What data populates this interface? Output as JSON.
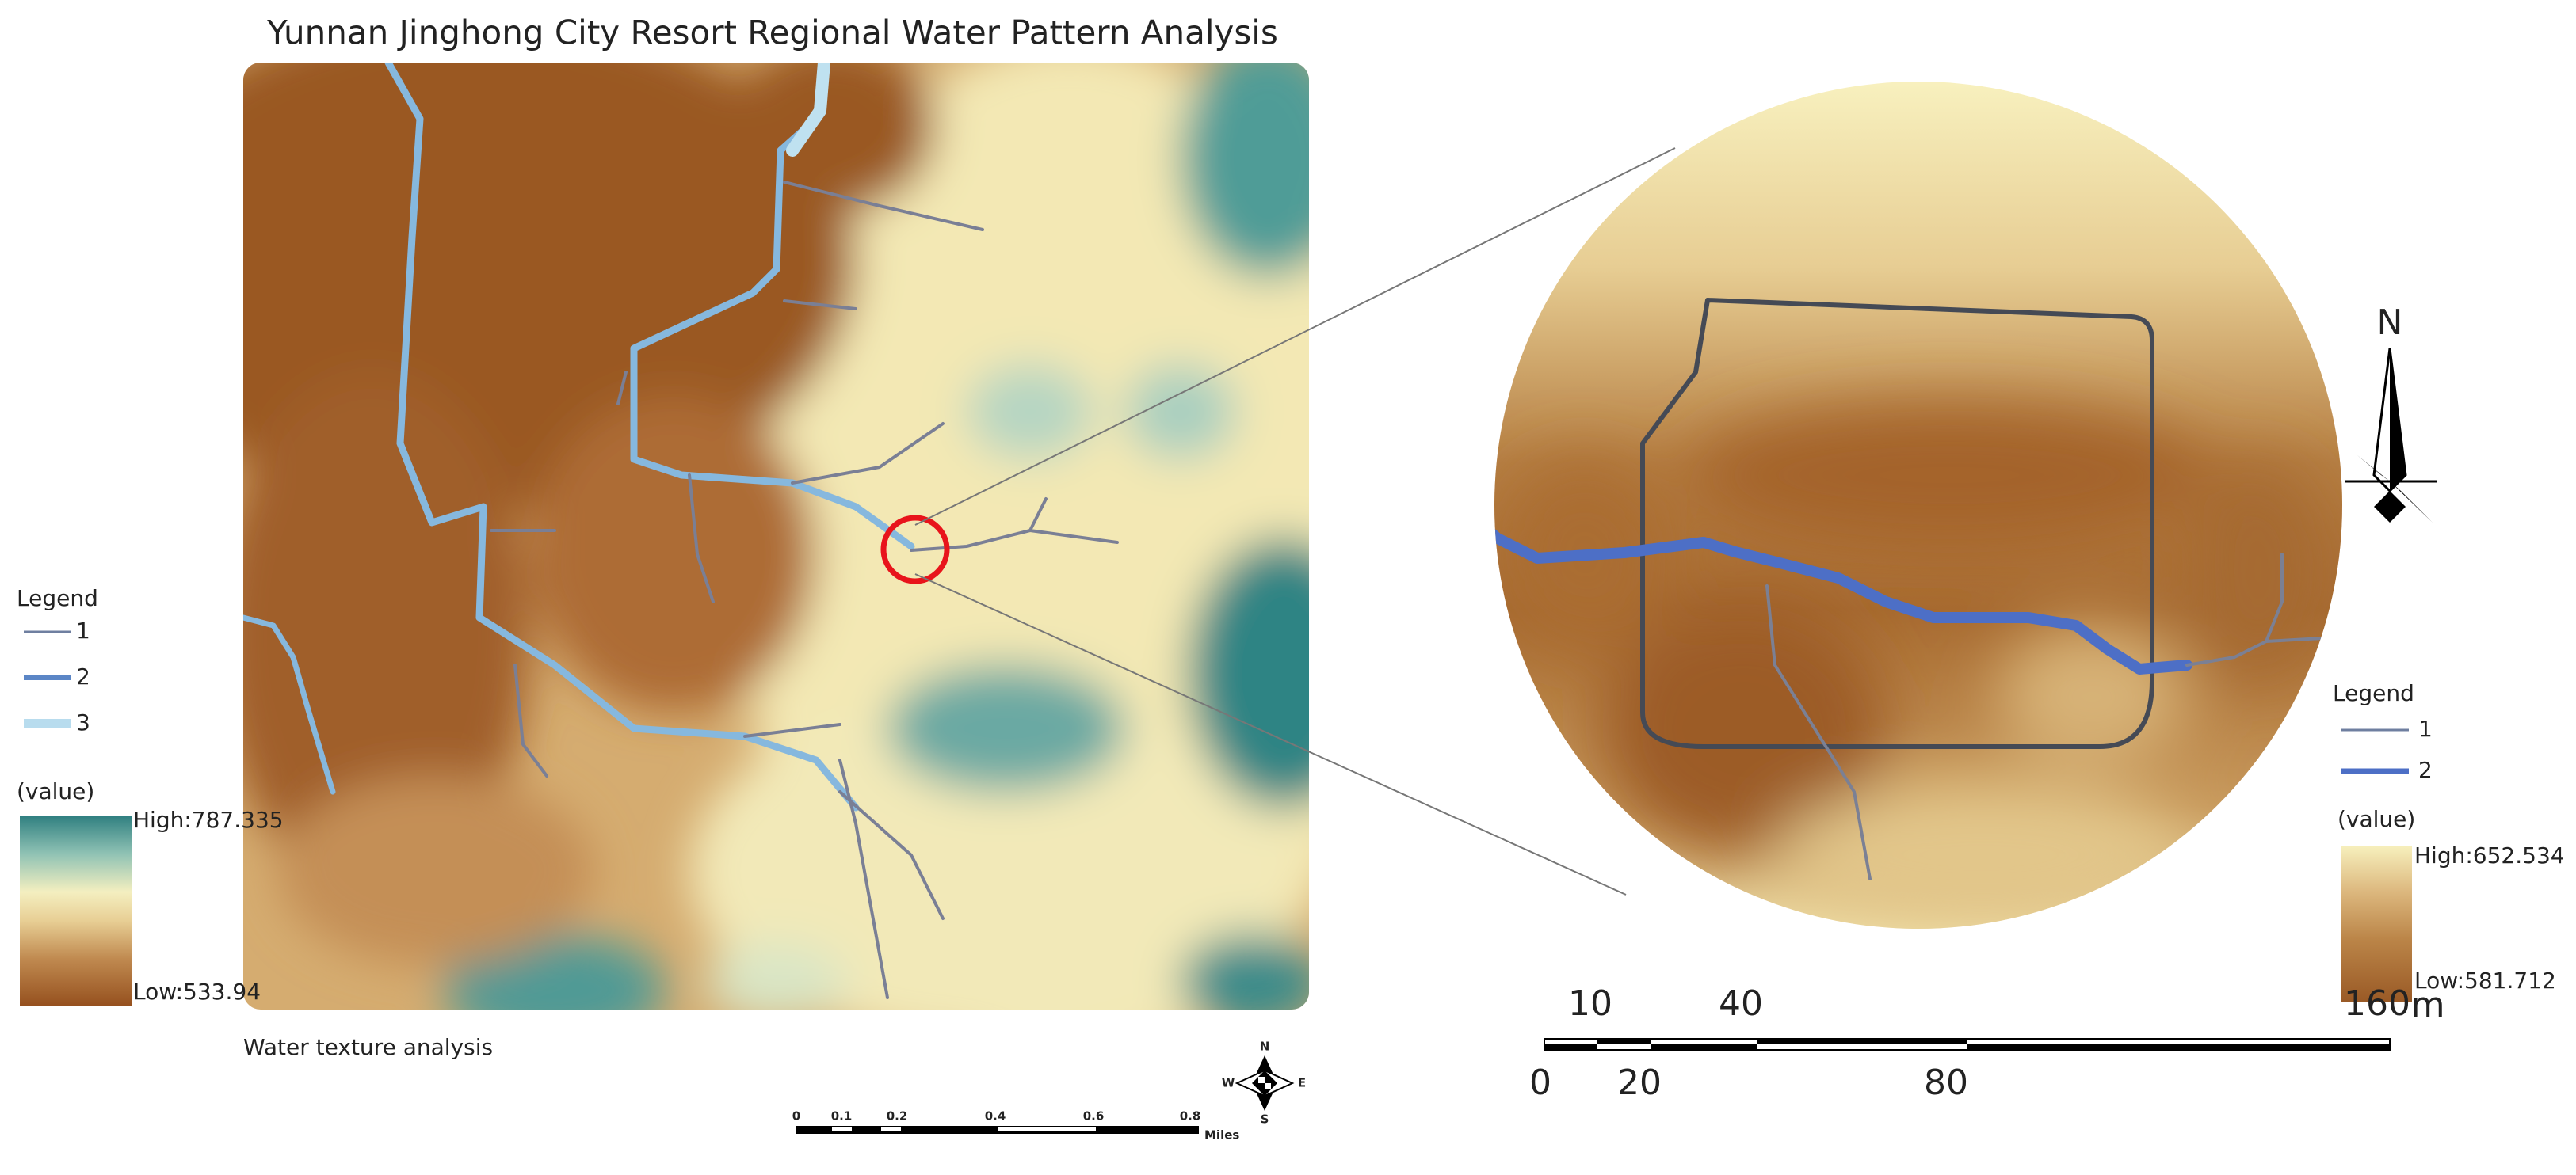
{
  "title": "Yunnan Jinghong City Resort Regional Water Pattern Analysis",
  "left_map": {
    "legend": {
      "title": "Legend",
      "items": [
        "1",
        "2",
        "3"
      ],
      "value_title": "(value)",
      "high": "High:787.335",
      "low": "Low:533.94"
    },
    "caption": "Water texture analysis",
    "scale_bar": {
      "labels": [
        "0",
        "0.1",
        "0.2",
        "0.4",
        "0.6",
        "0.8"
      ],
      "unit": "Miles"
    },
    "compass": {
      "n": "N",
      "s": "S",
      "w": "W",
      "e": "E"
    }
  },
  "right_map": {
    "legend": {
      "title": "Legend",
      "items": [
        "1",
        "2"
      ],
      "value_title": "(value)",
      "high": "High:652.534",
      "low": "Low:581.712"
    },
    "scale_bar": {
      "top_labels": [
        "10",
        "40",
        "160"
      ],
      "unit": "m",
      "bottom_labels": [
        "0",
        "20",
        "80"
      ]
    },
    "north": "N"
  }
}
